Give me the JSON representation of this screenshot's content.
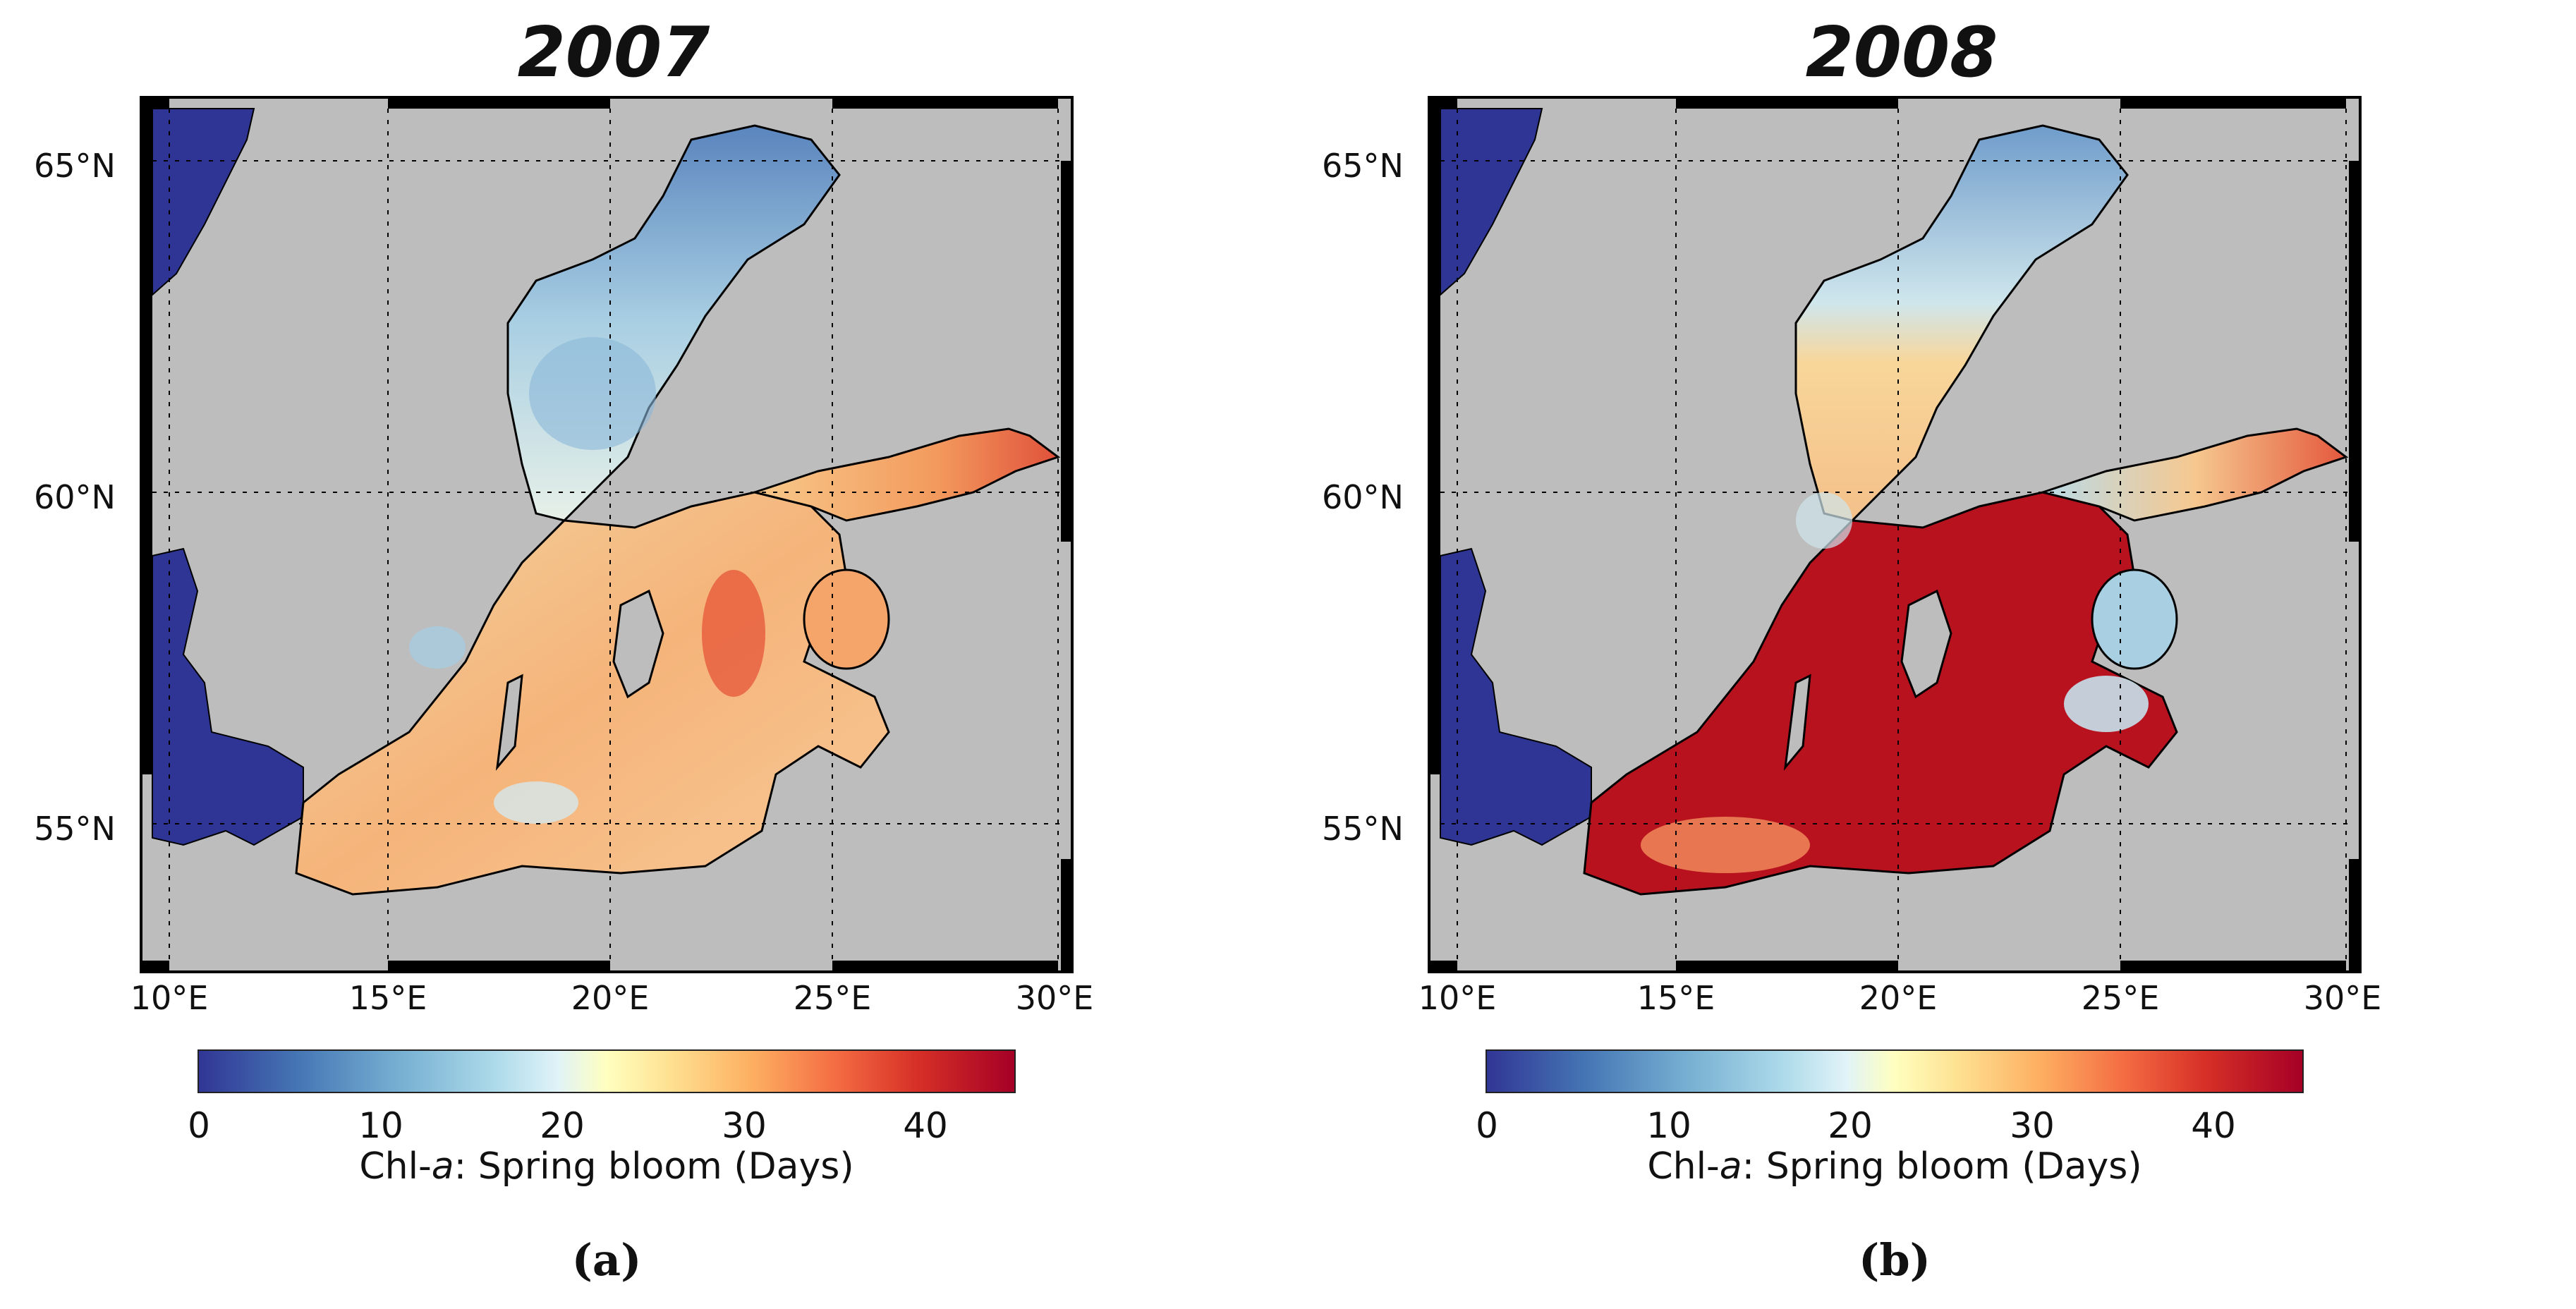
{
  "panels": [
    {
      "title": "2007",
      "sub_label": "(a)",
      "map_type": "chlorophyll-a spring bloom duration, Baltic Sea",
      "lat_labels": [
        "65°N",
        "60°N",
        "55°N"
      ],
      "lon_labels": [
        "10°E",
        "15°E",
        "20°E",
        "25°E",
        "30°E"
      ],
      "colorbar": {
        "ticks": [
          "0",
          "10",
          "20",
          "30",
          "40"
        ],
        "label_prefix": "Chl-",
        "label_italic": "a",
        "label_suffix": ": Spring bloom (Days)",
        "range": [
          0,
          45
        ],
        "colormap": "RdYlBu_r"
      },
      "regional_values_days": {
        "bothnian_bay": 8,
        "bothnian_sea": 18,
        "gulf_of_finland": 35,
        "gulf_of_riga": 32,
        "baltic_proper": 28,
        "southern_baltic": 27
      }
    },
    {
      "title": "2008",
      "sub_label": "(b)",
      "map_type": "chlorophyll-a spring bloom duration, Baltic Sea",
      "lat_labels": [
        "65°N",
        "60°N",
        "55°N"
      ],
      "lon_labels": [
        "10°E",
        "15°E",
        "20°E",
        "25°E",
        "30°E"
      ],
      "colorbar": {
        "ticks": [
          "0",
          "10",
          "20",
          "30",
          "40"
        ],
        "label_prefix": "Chl-",
        "label_italic": "a",
        "label_suffix": ": Spring bloom (Days)",
        "range": [
          0,
          45
        ],
        "colormap": "RdYlBu_r"
      },
      "regional_values_days": {
        "bothnian_bay": 10,
        "bothnian_sea": 24,
        "gulf_of_finland": 32,
        "gulf_of_riga": 14,
        "baltic_proper": 42,
        "southern_baltic": 41
      }
    }
  ],
  "colors": {
    "land_masked": "#2e3594",
    "land_background": "#bdbdbd",
    "frame": "#000000"
  }
}
